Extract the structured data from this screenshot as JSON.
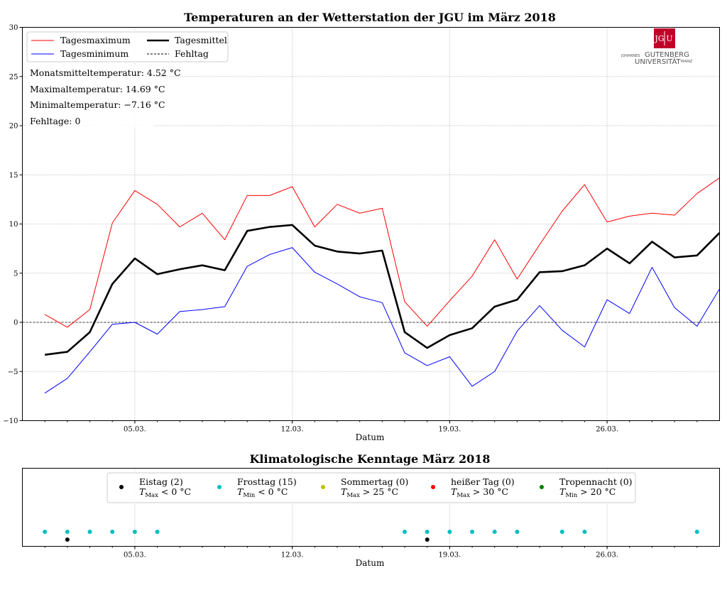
{
  "chart_data": [
    {
      "type": "line",
      "title": "Temperaturen an der Wetterstation der JGU im März 2018",
      "xlabel": "Datum",
      "ylabel": "",
      "xlim": [
        0,
        31
      ],
      "ylim": [
        -10,
        30
      ],
      "y_ticks": [
        -10,
        -5,
        0,
        5,
        10,
        15,
        20,
        25,
        30
      ],
      "x_ticks": [
        {
          "day": 5,
          "label": "05.03."
        },
        {
          "day": 12,
          "label": "12.03."
        },
        {
          "day": 19,
          "label": "19.03."
        },
        {
          "day": 26,
          "label": "26.03."
        }
      ],
      "grid": true,
      "legend_position": "top-left",
      "days": [
        1,
        2,
        3,
        4,
        5,
        6,
        7,
        8,
        9,
        10,
        11,
        12,
        13,
        14,
        15,
        16,
        17,
        18,
        19,
        20,
        21,
        22,
        23,
        24,
        25,
        26,
        27,
        28,
        29,
        30
      ],
      "series": [
        {
          "name": "Tagesmaximum",
          "color": "#ff0000",
          "values": [
            0.8,
            -0.5,
            1.3,
            10.1,
            13.4,
            12.0,
            9.7,
            11.1,
            8.4,
            12.9,
            12.9,
            13.8,
            9.7,
            12.0,
            11.1,
            11.6,
            2.1,
            -0.4,
            2.2,
            4.7,
            8.4,
            4.4,
            7.9,
            11.3,
            14.0,
            10.2,
            10.8,
            11.1,
            10.9,
            13.1
          ],
          "extra_last": 14.69
        },
        {
          "name": "Tagesminimum",
          "color": "#0000ff",
          "values": [
            -7.2,
            -5.7,
            -3.0,
            -0.2,
            0.0,
            -1.2,
            1.1,
            1.3,
            1.6,
            5.7,
            6.9,
            7.6,
            5.1,
            3.9,
            2.6,
            2.0,
            -3.1,
            -4.4,
            -3.5,
            -6.5,
            -5.0,
            -0.9,
            1.7,
            -0.8,
            -2.5,
            2.3,
            0.9,
            5.6,
            1.5,
            -0.4
          ],
          "extra_last": 3.4
        },
        {
          "name": "Tagesmittel",
          "color": "#000000",
          "values": [
            -3.3,
            -3.0,
            -1.0,
            3.9,
            6.5,
            4.9,
            5.4,
            5.8,
            5.3,
            9.3,
            9.7,
            9.9,
            7.8,
            7.2,
            7.0,
            7.3,
            -1.0,
            -2.6,
            -1.3,
            -0.6,
            1.6,
            2.3,
            5.1,
            5.2,
            5.8,
            7.5,
            6.0,
            8.2,
            6.6,
            6.8
          ],
          "extra_last": 9.1
        },
        {
          "name": "Fehltag",
          "color": "#000000",
          "style": "dashed",
          "values": [
            0
          ]
        }
      ],
      "stats": [
        "Monatsmitteltemperatur: 4.52 °C",
        "Maximaltemperatur: 14.69 °C",
        "Minimaltemperatur: −7.16 °C",
        "Fehltage: 0"
      ]
    },
    {
      "type": "scatter",
      "title": "Klimatologische Kenntage März 2018",
      "xlabel": "Datum",
      "xlim": [
        0,
        31
      ],
      "x_ticks": [
        {
          "day": 5,
          "label": "05.03."
        },
        {
          "day": 12,
          "label": "12.03."
        },
        {
          "day": 19,
          "label": "19.03."
        },
        {
          "day": 26,
          "label": "26.03."
        }
      ],
      "legend_position": "top-center",
      "categories": [
        {
          "name": "Eistag (2)",
          "sub": "T",
          "subidx": "Max",
          "cond": "< 0 °C",
          "color": "#000000",
          "days": [
            2,
            18
          ]
        },
        {
          "name": "Frosttag (15)",
          "sub": "T",
          "subidx": "Min",
          "cond": "< 0 °C",
          "color": "#00bfbf",
          "days": [
            1,
            2,
            3,
            4,
            5,
            6,
            17,
            18,
            19,
            20,
            21,
            22,
            24,
            25,
            30
          ]
        },
        {
          "name": "Sommertag (0)",
          "sub": "T",
          "subidx": "Max",
          "cond": "> 25 °C",
          "color": "#bfbf00",
          "days": []
        },
        {
          "name": "heißer Tag (0)",
          "sub": "T",
          "subidx": "Max",
          "cond": "> 30 °C",
          "color": "#ff0000",
          "days": []
        },
        {
          "name": "Tropennacht (0)",
          "sub": "T",
          "subidx": "Min",
          "cond": "> 20 °C",
          "color": "#008000",
          "days": []
        }
      ]
    }
  ],
  "logo": {
    "mark_left": "JG",
    "mark_right": "U",
    "line1_small": "JOHANNES",
    "line1_big": "GUTENBERG",
    "line2_big": "UNIVERSITÄT",
    "line2_small": "MAINZ",
    "color": "#c1002a"
  }
}
